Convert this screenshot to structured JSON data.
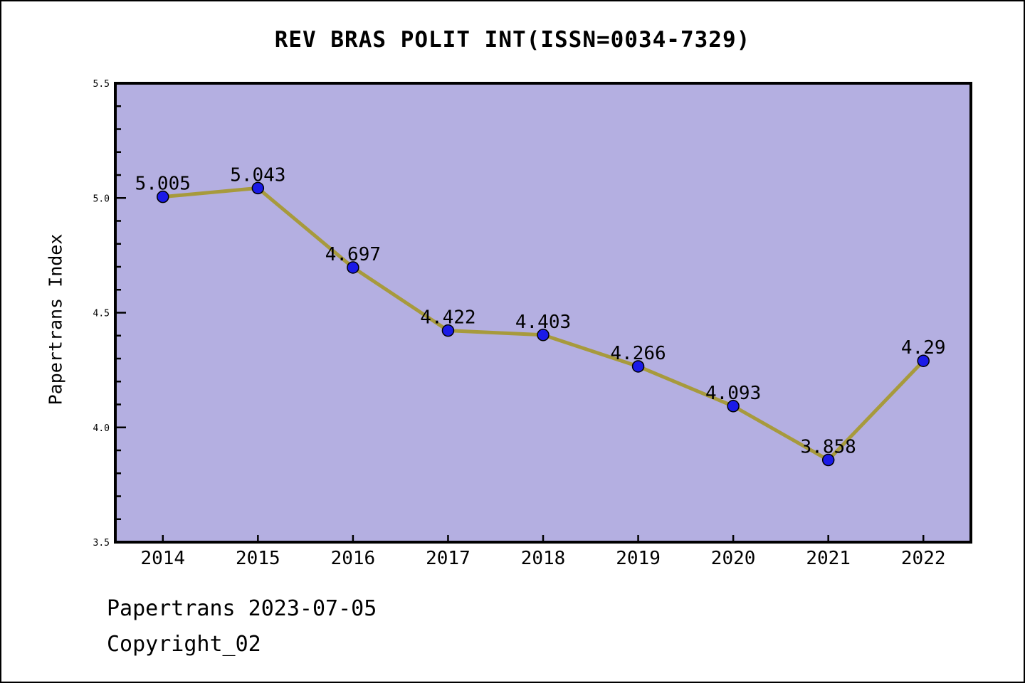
{
  "chart": {
    "title": "REV BRAS POLIT INT(ISSN=0034-7329)",
    "ylabel": "Papertrans Index"
  },
  "chart_data": {
    "type": "line",
    "title": "REV BRAS POLIT INT(ISSN=0034-7329)",
    "xlabel": "",
    "ylabel": "Papertrans Index",
    "categories": [
      "2014",
      "2015",
      "2016",
      "2017",
      "2018",
      "2019",
      "2020",
      "2021",
      "2022"
    ],
    "values": [
      5.005,
      5.043,
      4.697,
      4.422,
      4.403,
      4.266,
      4.093,
      3.858,
      4.29
    ],
    "point_labels": [
      "5.005",
      "5.043",
      "4.697",
      "4.422",
      "4.403",
      "4.266",
      "4.093",
      "3.858",
      "4.29"
    ],
    "ylim": [
      3.5,
      5.5
    ],
    "y_major_ticks": [
      "3.5",
      "4.0",
      "4.5",
      "5.0",
      "5.5"
    ],
    "y_minor_step": 0.1,
    "grid": false,
    "legend": false,
    "colors": {
      "plot_background": "#b4afe1",
      "line": "#a79a3c",
      "marker_fill": "#1a1ae8",
      "marker_edge": "#000000",
      "axis": "#000000",
      "text": "#000000"
    }
  },
  "footer": {
    "line1": "Papertrans 2023-07-05",
    "line2": "Copyright_02"
  }
}
